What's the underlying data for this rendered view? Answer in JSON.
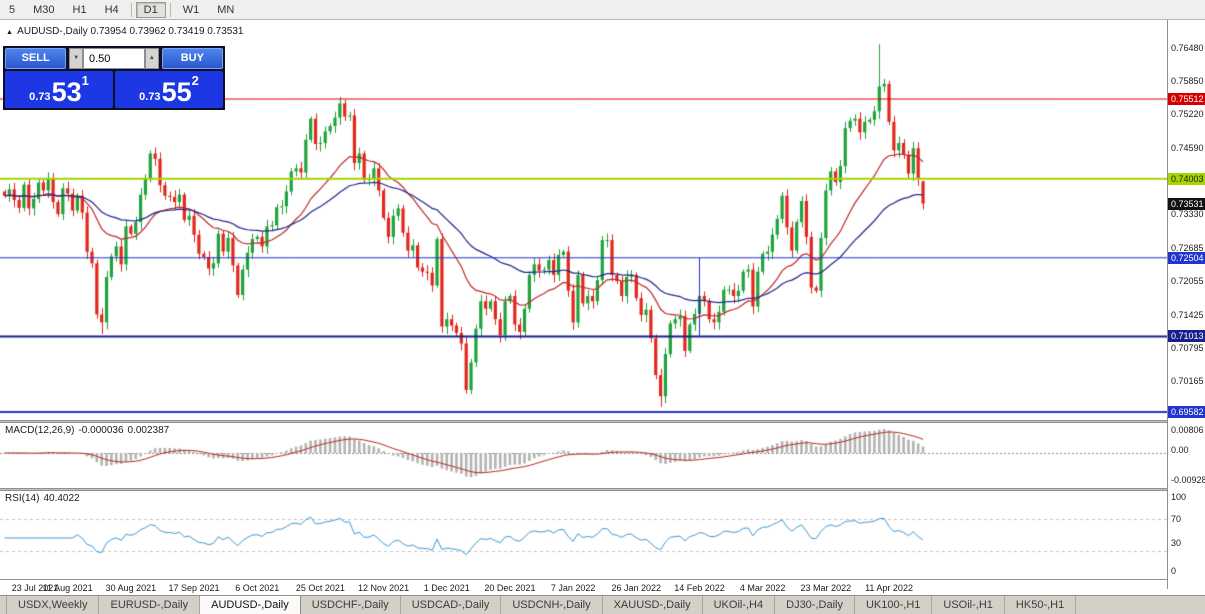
{
  "toolbar": {
    "timeframes": [
      "5",
      "M30",
      "H1",
      "H4",
      "D1",
      "W1",
      "MN"
    ],
    "active": "D1"
  },
  "quote_header": {
    "symbol": "AUDUSD-,Daily",
    "ohlc": "0.73954 0.73962 0.73419 0.73531"
  },
  "trade_widget": {
    "sell_label": "SELL",
    "buy_label": "BUY",
    "volume": "0.50",
    "bid": {
      "small": "0.73",
      "big": "53",
      "sup": "1"
    },
    "ask": {
      "small": "0.73",
      "big": "55",
      "sup": "2"
    }
  },
  "price_axis": {
    "ticks": [
      "0.76480",
      "0.75850",
      "0.75220",
      "0.74590",
      "0.73330",
      "0.72685",
      "0.72055",
      "0.71425",
      "0.70795",
      "0.70165"
    ],
    "levels": [
      {
        "price": 0.75512,
        "label": "0.75512",
        "line": "#e00000",
        "lineWidth": 1,
        "chipBg": "#d40000",
        "chipText": "#ffffff"
      },
      {
        "price": 0.74003,
        "label": "0.74003",
        "line": "#a6d500",
        "lineWidth": 2,
        "chipBg": "#a6d500",
        "chipText": "#1a1a1a"
      },
      {
        "price": 0.73531,
        "label": "0.73531",
        "line": null,
        "lineWidth": 0,
        "chipBg": "#111111",
        "chipText": "#ffffff"
      },
      {
        "price": 0.72504,
        "label": "0.72504",
        "line": "#2234cc",
        "lineWidth": 1,
        "chipBg": "#2234cc",
        "chipText": "#ffffff"
      },
      {
        "price": 0.71013,
        "label": "0.71013",
        "line": "#1a1f8e",
        "lineWidth": 2,
        "chipBg": "#1a1f8e",
        "chipText": "#ffffff"
      },
      {
        "price": 0.69582,
        "label": "0.69582",
        "line": "#2234cc",
        "lineWidth": 2,
        "chipBg": "#2234cc",
        "chipText": "#ffffff"
      }
    ]
  },
  "macd": {
    "name": "MACD(12,26,9)",
    "value_main": "-0.000036",
    "value_signal": "0.002387",
    "axis_top": "0.00806",
    "axis_zero": "0.00",
    "axis_bottom": "-0.00928"
  },
  "rsi": {
    "name": "RSI(14)",
    "value": "40.4022",
    "axis_100": "100",
    "axis_70": "70",
    "axis_30": "30",
    "axis_0": "0"
  },
  "date_axis": [
    "23 Jul 2021",
    "11 Aug 2021",
    "30 Aug 2021",
    "17 Sep 2021",
    "6 Oct 2021",
    "25 Oct 2021",
    "12 Nov 2021",
    "1 Dec 2021",
    "20 Dec 2021",
    "7 Jan 2022",
    "26 Jan 2022",
    "14 Feb 2022",
    "4 Mar 2022",
    "23 Mar 2022",
    "11 Apr 2022"
  ],
  "tabs": {
    "items": [
      "USDX,Weekly",
      "EURUSD-,Daily",
      "AUDUSD-,Daily",
      "USDCHF-,Daily",
      "USDCAD-,Daily",
      "USDCNH-,Daily",
      "XAUUSD-,Daily",
      "UKOil-,H4",
      "DJ30-,Daily",
      "UK100-,H1",
      "USOil-,H1",
      "HK50-,H1"
    ],
    "active": "AUDUSD-,Daily"
  },
  "chart_data": {
    "type": "candlestick",
    "symbol": "AUDUSD-",
    "timeframe": "Daily",
    "last_candle": {
      "open": 0.73954,
      "high": 0.73962,
      "low": 0.73419,
      "close": 0.73531
    },
    "horizontal_levels": [
      0.75512,
      0.74003,
      0.72504,
      0.71013,
      0.69582
    ],
    "vertical_connector": {
      "x_index": 143,
      "from": 0.72504,
      "to": 0.71013
    },
    "indicators": {
      "ma_fast": 20,
      "ma_slow": 45,
      "macd": [
        12,
        26,
        9
      ],
      "rsi": 14,
      "macd_current": -3.6e-05,
      "macd_signal_current": 0.002387,
      "rsi_current": 40.4022
    },
    "wick_overrides": {
      "20": {
        "low": 0.7106
      },
      "69": {
        "high": 0.7555
      },
      "95": {
        "low": 0.6993
      },
      "135": {
        "low": 0.6968
      },
      "180": {
        "high": 0.7655
      }
    },
    "closes": [
      0.7368,
      0.738,
      0.736,
      0.7345,
      0.7389,
      0.7344,
      0.7362,
      0.7393,
      0.7378,
      0.74,
      0.7356,
      0.7333,
      0.7382,
      0.7372,
      0.734,
      0.7368,
      0.7336,
      0.7262,
      0.724,
      0.7143,
      0.7128,
      0.7214,
      0.7253,
      0.7272,
      0.7238,
      0.731,
      0.7296,
      0.7318,
      0.737,
      0.74,
      0.7448,
      0.7438,
      0.7388,
      0.7368,
      0.7366,
      0.7356,
      0.737,
      0.7322,
      0.733,
      0.7294,
      0.7258,
      0.7252,
      0.723,
      0.724,
      0.7296,
      0.7262,
      0.7288,
      0.7236,
      0.718,
      0.7228,
      0.726,
      0.7286,
      0.729,
      0.7272,
      0.731,
      0.7312,
      0.7346,
      0.7348,
      0.7376,
      0.7414,
      0.742,
      0.7412,
      0.7474,
      0.7514,
      0.7466,
      0.7468,
      0.749,
      0.75,
      0.7516,
      0.7543,
      0.7518,
      0.752,
      0.743,
      0.7448,
      0.7398,
      0.74,
      0.742,
      0.7378,
      0.7326,
      0.729,
      0.733,
      0.7344,
      0.7298,
      0.7264,
      0.7274,
      0.7232,
      0.7224,
      0.7222,
      0.7198,
      0.7286,
      0.712,
      0.7134,
      0.7122,
      0.7108,
      0.7088,
      0.7,
      0.7052,
      0.7116,
      0.7168,
      0.7154,
      0.7168,
      0.7134,
      0.7104,
      0.7168,
      0.7178,
      0.7124,
      0.711,
      0.7154,
      0.7218,
      0.7238,
      0.7226,
      0.7228,
      0.7246,
      0.7218,
      0.7256,
      0.7262,
      0.7188,
      0.7128,
      0.7218,
      0.7164,
      0.7178,
      0.7168,
      0.7208,
      0.7284,
      0.7284,
      0.7218,
      0.7206,
      0.7178,
      0.7214,
      0.7218,
      0.7174,
      0.7142,
      0.7152,
      0.7098,
      0.7028,
      0.6988,
      0.7068,
      0.7126,
      0.7134,
      0.714,
      0.7074,
      0.7124,
      0.7144,
      0.7178,
      0.7168,
      0.7134,
      0.7128,
      0.7148,
      0.719,
      0.719,
      0.7178,
      0.7188,
      0.7224,
      0.7228,
      0.7158,
      0.7224,
      0.7258,
      0.7262,
      0.7294,
      0.7324,
      0.7368,
      0.7308,
      0.7264,
      0.7318,
      0.7358,
      0.729,
      0.7194,
      0.7188,
      0.7288,
      0.7378,
      0.7414,
      0.7394,
      0.7424,
      0.7496,
      0.751,
      0.7514,
      0.7488,
      0.7508,
      0.7512,
      0.7528,
      0.7575,
      0.758,
      0.7508,
      0.7454,
      0.7468,
      0.7446,
      0.741,
      0.7458,
      0.74,
      0.73531
    ]
  }
}
